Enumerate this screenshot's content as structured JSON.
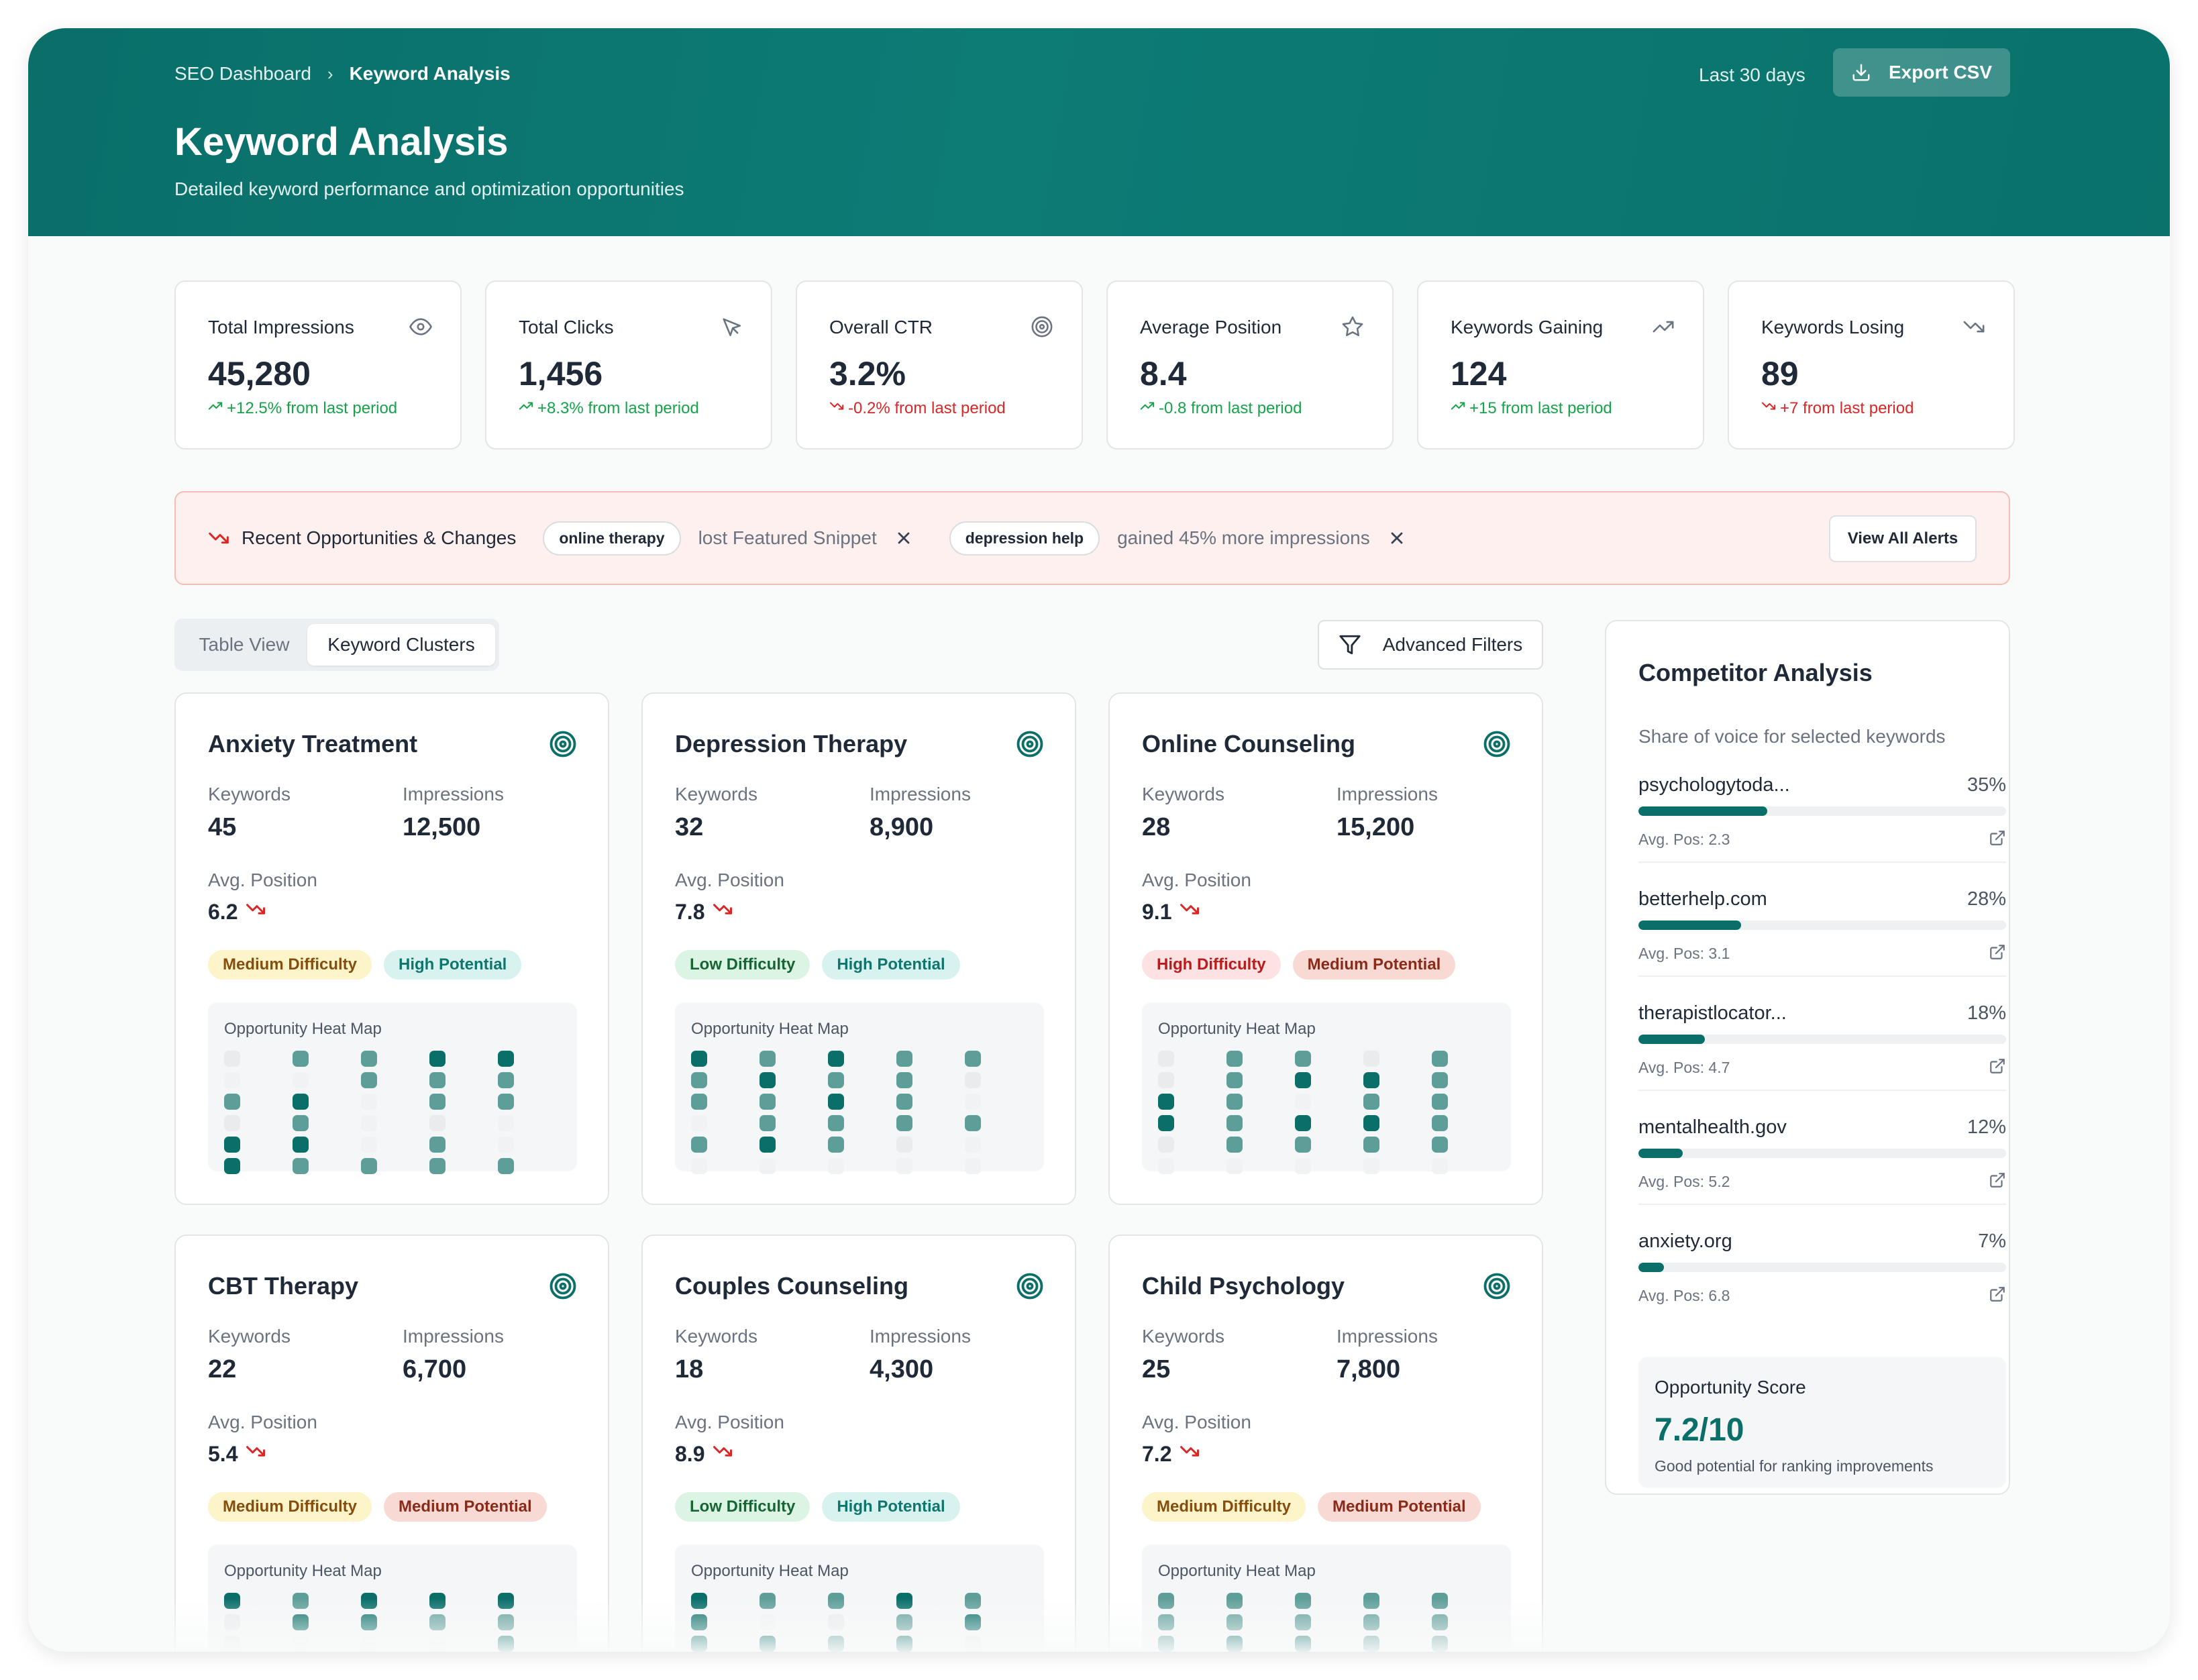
{
  "header": {
    "breadcrumb": [
      "SEO Dashboard",
      "Keyword Analysis"
    ],
    "title": "Keyword Analysis",
    "subtitle": "Detailed keyword performance and optimization opportunities",
    "date_range": "Last 30 days",
    "export_label": "Export CSV"
  },
  "stats": [
    {
      "label": "Total Impressions",
      "value": "45,280",
      "change": "+12.5% from last period",
      "trend": "up",
      "icon": "eye-icon"
    },
    {
      "label": "Total Clicks",
      "value": "1,456",
      "change": "+8.3% from last period",
      "trend": "up",
      "icon": "cursor-icon"
    },
    {
      "label": "Overall CTR",
      "value": "3.2%",
      "change": "-0.2% from last period",
      "trend": "down",
      "icon": "target-icon"
    },
    {
      "label": "Average Position",
      "value": "8.4",
      "change": "-0.8 from last period",
      "trend": "up",
      "icon": "star-icon"
    },
    {
      "label": "Keywords Gaining",
      "value": "124",
      "change": "+15 from last period",
      "trend": "up",
      "icon": "trending-up-icon"
    },
    {
      "label": "Keywords Losing",
      "value": "89",
      "change": "+7 from last period",
      "trend": "down",
      "icon": "trending-down-icon"
    }
  ],
  "alerts": {
    "title": "Recent Opportunities & Changes",
    "items": [
      {
        "keyword": "online therapy",
        "message": "lost Featured Snippet"
      },
      {
        "keyword": "depression help",
        "message": "gained 45% more impressions"
      }
    ],
    "view_all_label": "View All Alerts"
  },
  "view_tabs": {
    "table": "Table View",
    "clusters": "Keyword Clusters",
    "active": "clusters"
  },
  "filters_label": "Advanced Filters",
  "cluster_labels": {
    "keywords": "Keywords",
    "impressions": "Impressions",
    "avg_position": "Avg. Position",
    "heatmap": "Opportunity Heat Map"
  },
  "clusters": [
    {
      "name": "Anxiety Treatment",
      "keywords": "45",
      "impressions": "12,500",
      "avg_position": "6.2",
      "difficulty": "Medium Difficulty",
      "potential": "High Potential",
      "heatmap": [
        [
          1,
          3,
          3,
          4,
          4
        ],
        [
          0,
          0,
          3,
          3,
          3
        ],
        [
          3,
          4,
          0,
          3,
          3
        ],
        [
          1,
          3,
          0,
          1,
          0
        ],
        [
          4,
          4,
          0,
          3,
          0
        ],
        [
          4,
          3,
          3,
          3,
          3
        ]
      ]
    },
    {
      "name": "Depression Therapy",
      "keywords": "32",
      "impressions": "8,900",
      "avg_position": "7.8",
      "difficulty": "Low Difficulty",
      "potential": "High Potential",
      "heatmap": [
        [
          4,
          3,
          4,
          3,
          3
        ],
        [
          3,
          4,
          3,
          3,
          1
        ],
        [
          3,
          3,
          4,
          3,
          0
        ],
        [
          0,
          3,
          3,
          3,
          3
        ],
        [
          3,
          4,
          3,
          1,
          0
        ],
        [
          0,
          0,
          0,
          0,
          0
        ]
      ]
    },
    {
      "name": "Online Counseling",
      "keywords": "28",
      "impressions": "15,200",
      "avg_position": "9.1",
      "difficulty": "High Difficulty",
      "potential": "Medium Potential",
      "heatmap": [
        [
          1,
          3,
          3,
          1,
          3
        ],
        [
          1,
          3,
          4,
          4,
          3
        ],
        [
          4,
          3,
          0,
          3,
          3
        ],
        [
          4,
          3,
          4,
          4,
          3
        ],
        [
          1,
          3,
          3,
          3,
          3
        ],
        [
          0,
          0,
          0,
          0,
          0
        ]
      ]
    },
    {
      "name": "CBT Therapy",
      "keywords": "22",
      "impressions": "6,700",
      "avg_position": "5.4",
      "difficulty": "Medium Difficulty",
      "potential": "Medium Potential",
      "heatmap": [
        [
          4,
          3,
          4,
          4,
          4
        ],
        [
          1,
          4,
          4,
          3,
          3
        ],
        [
          1,
          0,
          0,
          0,
          4
        ],
        [
          0,
          0,
          0,
          0,
          0
        ],
        [
          0,
          0,
          0,
          0,
          0
        ],
        [
          0,
          0,
          0,
          0,
          0
        ]
      ]
    },
    {
      "name": "Couples Counseling",
      "keywords": "18",
      "impressions": "4,300",
      "avg_position": "8.9",
      "difficulty": "Low Difficulty",
      "potential": "High Potential",
      "heatmap": [
        [
          4,
          3,
          3,
          4,
          3
        ],
        [
          4,
          0,
          1,
          3,
          4
        ],
        [
          4,
          4,
          3,
          4,
          1
        ],
        [
          0,
          0,
          0,
          0,
          0
        ],
        [
          0,
          0,
          0,
          0,
          0
        ],
        [
          0,
          0,
          0,
          0,
          0
        ]
      ]
    },
    {
      "name": "Child Psychology",
      "keywords": "25",
      "impressions": "7,800",
      "avg_position": "7.2",
      "difficulty": "Medium Difficulty",
      "potential": "Medium Potential",
      "heatmap": [
        [
          3,
          3,
          3,
          3,
          3
        ],
        [
          3,
          3,
          3,
          3,
          3
        ],
        [
          3,
          4,
          4,
          3,
          3
        ],
        [
          0,
          0,
          0,
          0,
          0
        ],
        [
          0,
          0,
          0,
          0,
          0
        ],
        [
          0,
          0,
          0,
          0,
          0
        ]
      ]
    }
  ],
  "competitors": {
    "title": "Competitor Analysis",
    "subtitle": "Share of voice for selected keywords",
    "avg_pos_prefix": "Avg. Pos: ",
    "items": [
      {
        "name": "psychologytoda...",
        "share": "35%",
        "share_value": 35,
        "avg_pos": "2.3"
      },
      {
        "name": "betterhelp.com",
        "share": "28%",
        "share_value": 28,
        "avg_pos": "3.1"
      },
      {
        "name": "therapistlocator...",
        "share": "18%",
        "share_value": 18,
        "avg_pos": "4.7"
      },
      {
        "name": "mentalhealth.gov",
        "share": "12%",
        "share_value": 12,
        "avg_pos": "5.2"
      },
      {
        "name": "anxiety.org",
        "share": "7%",
        "share_value": 7,
        "avg_pos": "6.8"
      }
    ],
    "opportunity": {
      "label": "Opportunity Score",
      "value": "7.2/10",
      "description": "Good potential for ranking improvements"
    }
  },
  "colors": {
    "brand": "#0a6e69",
    "up": "#16a34a",
    "down": "#dc2626",
    "heat_scale": [
      "#f1f2f3",
      "#e9ebec",
      "#c9d6d5",
      "#5e9e99",
      "#0a6e69"
    ]
  }
}
